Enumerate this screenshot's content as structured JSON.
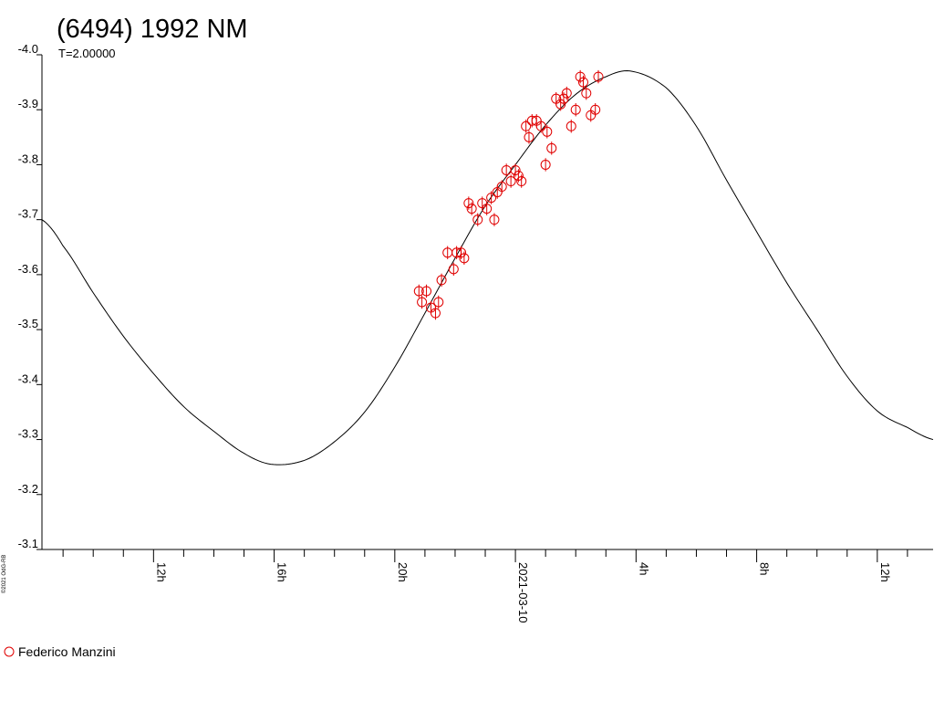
{
  "title": "(6494) 1992 NM",
  "subtitle": "T=2.00000",
  "credit": "©2021 OdG-RB",
  "colors": {
    "observations": "#e00000",
    "fit_curve": "#000000",
    "axes": "#000000"
  },
  "legend": [
    {
      "label": "Federico Manzini",
      "marker": "open-circle",
      "color": "#e00000"
    }
  ],
  "chart_data": {
    "type": "scatter",
    "title": "(6494) 1992 NM",
    "subtitle": "T=2.00000",
    "xlabel": "",
    "ylabel": "",
    "x_units": "hours from 2021-03-10 00:00",
    "xlim": [
      -15.7,
      13.85
    ],
    "ylim": [
      -3.1,
      -4.0
    ],
    "y_inverted": true,
    "yticks": [
      -4.0,
      -3.9,
      -3.8,
      -3.7,
      -3.6,
      -3.5,
      -3.4,
      -3.3,
      -3.2,
      -3.1
    ],
    "ytick_labels": [
      "-4.0",
      "-3.9",
      "-3.8",
      "-3.7",
      "-3.6",
      "-3.5",
      "-3.4",
      "-3.3",
      "-3.2",
      "-3.1"
    ],
    "xticks_major": [
      {
        "x": -12,
        "label": "12h"
      },
      {
        "x": -8,
        "label": "16h"
      },
      {
        "x": -4,
        "label": "20h"
      },
      {
        "x": 0,
        "label": "2021-03-10"
      },
      {
        "x": 4,
        "label": "4h"
      },
      {
        "x": 8,
        "label": "8h"
      },
      {
        "x": 12,
        "label": "12h"
      }
    ],
    "xtick_minor_step": 1,
    "grid": false,
    "legend_position": "bottom-left",
    "fit_curve": {
      "name": "",
      "type": "fourier-fit",
      "period_hours": 2.0,
      "mean": -3.612,
      "amplitude": 0.358,
      "peak_x": 3.85,
      "samples_x": [
        -15.7,
        -15,
        -14,
        -13,
        -12,
        -11,
        -10,
        -9,
        -8.1,
        -7,
        -6,
        -5,
        -4,
        -3,
        -2,
        -1,
        0,
        1,
        2,
        3,
        3.85,
        5,
        6,
        7,
        8,
        9,
        10,
        11,
        12,
        13,
        13.85
      ],
      "samples_y": [
        -3.7,
        -3.652,
        -3.567,
        -3.488,
        -3.42,
        -3.36,
        -3.315,
        -3.275,
        -3.255,
        -3.262,
        -3.296,
        -3.35,
        -3.432,
        -3.53,
        -3.63,
        -3.725,
        -3.8,
        -3.872,
        -3.928,
        -3.96,
        -3.97,
        -3.94,
        -3.87,
        -3.772,
        -3.678,
        -3.585,
        -3.5,
        -3.415,
        -3.352,
        -3.322,
        -3.3
      ]
    },
    "series": [
      {
        "name": "Federico Manzini",
        "marker": "open-circle",
        "x": [
          -3.2,
          -3.1,
          -2.95,
          -2.8,
          -2.65,
          -2.55,
          -2.45,
          -2.25,
          -2.05,
          -1.95,
          -1.8,
          -1.7,
          -1.55,
          -1.45,
          -1.25,
          -1.1,
          -0.95,
          -0.8,
          -0.7,
          -0.6,
          -0.45,
          -0.3,
          -0.15,
          0.0,
          0.1,
          0.2,
          0.35,
          0.45,
          0.55,
          0.7,
          0.85,
          1.0,
          1.05,
          1.2,
          1.35,
          1.5,
          1.6,
          1.7,
          1.85,
          2.0,
          2.15,
          2.25,
          2.35,
          2.5,
          2.65,
          2.75
        ],
        "y": [
          -3.57,
          -3.55,
          -3.57,
          -3.54,
          -3.53,
          -3.55,
          -3.59,
          -3.64,
          -3.61,
          -3.64,
          -3.64,
          -3.63,
          -3.73,
          -3.72,
          -3.7,
          -3.73,
          -3.72,
          -3.74,
          -3.7,
          -3.75,
          -3.76,
          -3.79,
          -3.77,
          -3.79,
          -3.78,
          -3.77,
          -3.87,
          -3.85,
          -3.88,
          -3.88,
          -3.87,
          -3.8,
          -3.86,
          -3.83,
          -3.92,
          -3.91,
          -3.92,
          -3.93,
          -3.87,
          -3.9,
          -3.96,
          -3.95,
          -3.93,
          -3.89,
          -3.9,
          -3.96
        ],
        "yerr": [
          0.012,
          0.012,
          0.012,
          0.012,
          0.012,
          0.012,
          0.012,
          0.012,
          0.012,
          0.012,
          0.012,
          0.012,
          0.012,
          0.012,
          0.012,
          0.012,
          0.012,
          0.012,
          0.012,
          0.012,
          0.012,
          0.012,
          0.012,
          0.012,
          0.012,
          0.012,
          0.012,
          0.012,
          0.012,
          0.012,
          0.012,
          0.012,
          0.012,
          0.012,
          0.012,
          0.012,
          0.012,
          0.012,
          0.012,
          0.012,
          0.012,
          0.012,
          0.012,
          0.012,
          0.012,
          0.012
        ]
      }
    ]
  }
}
